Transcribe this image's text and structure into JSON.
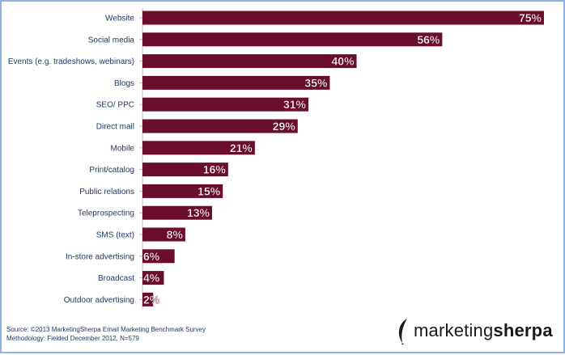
{
  "chart_data": {
    "type": "bar",
    "orientation": "horizontal",
    "categories": [
      "Website",
      "Social media",
      "Events (e.g. tradeshows, webinars)",
      "Blogs",
      "SEO/ PPC",
      "Direct mail",
      "Mobile",
      "Print/catalog",
      "Public relations",
      "Teleprospecting",
      "SMS (text)",
      "In-store advertising",
      "Broadcast",
      "Outdoor advertising"
    ],
    "values": [
      75,
      56,
      40,
      35,
      31,
      29,
      21,
      16,
      15,
      13,
      8,
      6,
      4,
      2
    ],
    "value_suffix": "%",
    "xlim": [
      0,
      75
    ],
    "bar_color": "#6b0d2c",
    "label_color": "#ffffff",
    "category_label_color": "#1f3864"
  },
  "source": {
    "line1": "Source: ©2013 MarketingSherpa Email Marketing Benchmark Survey",
    "line2": "Methodology: Fielded December 2012, N=579"
  },
  "logo": {
    "text_regular": "marketing",
    "text_bold": "sherpa"
  }
}
